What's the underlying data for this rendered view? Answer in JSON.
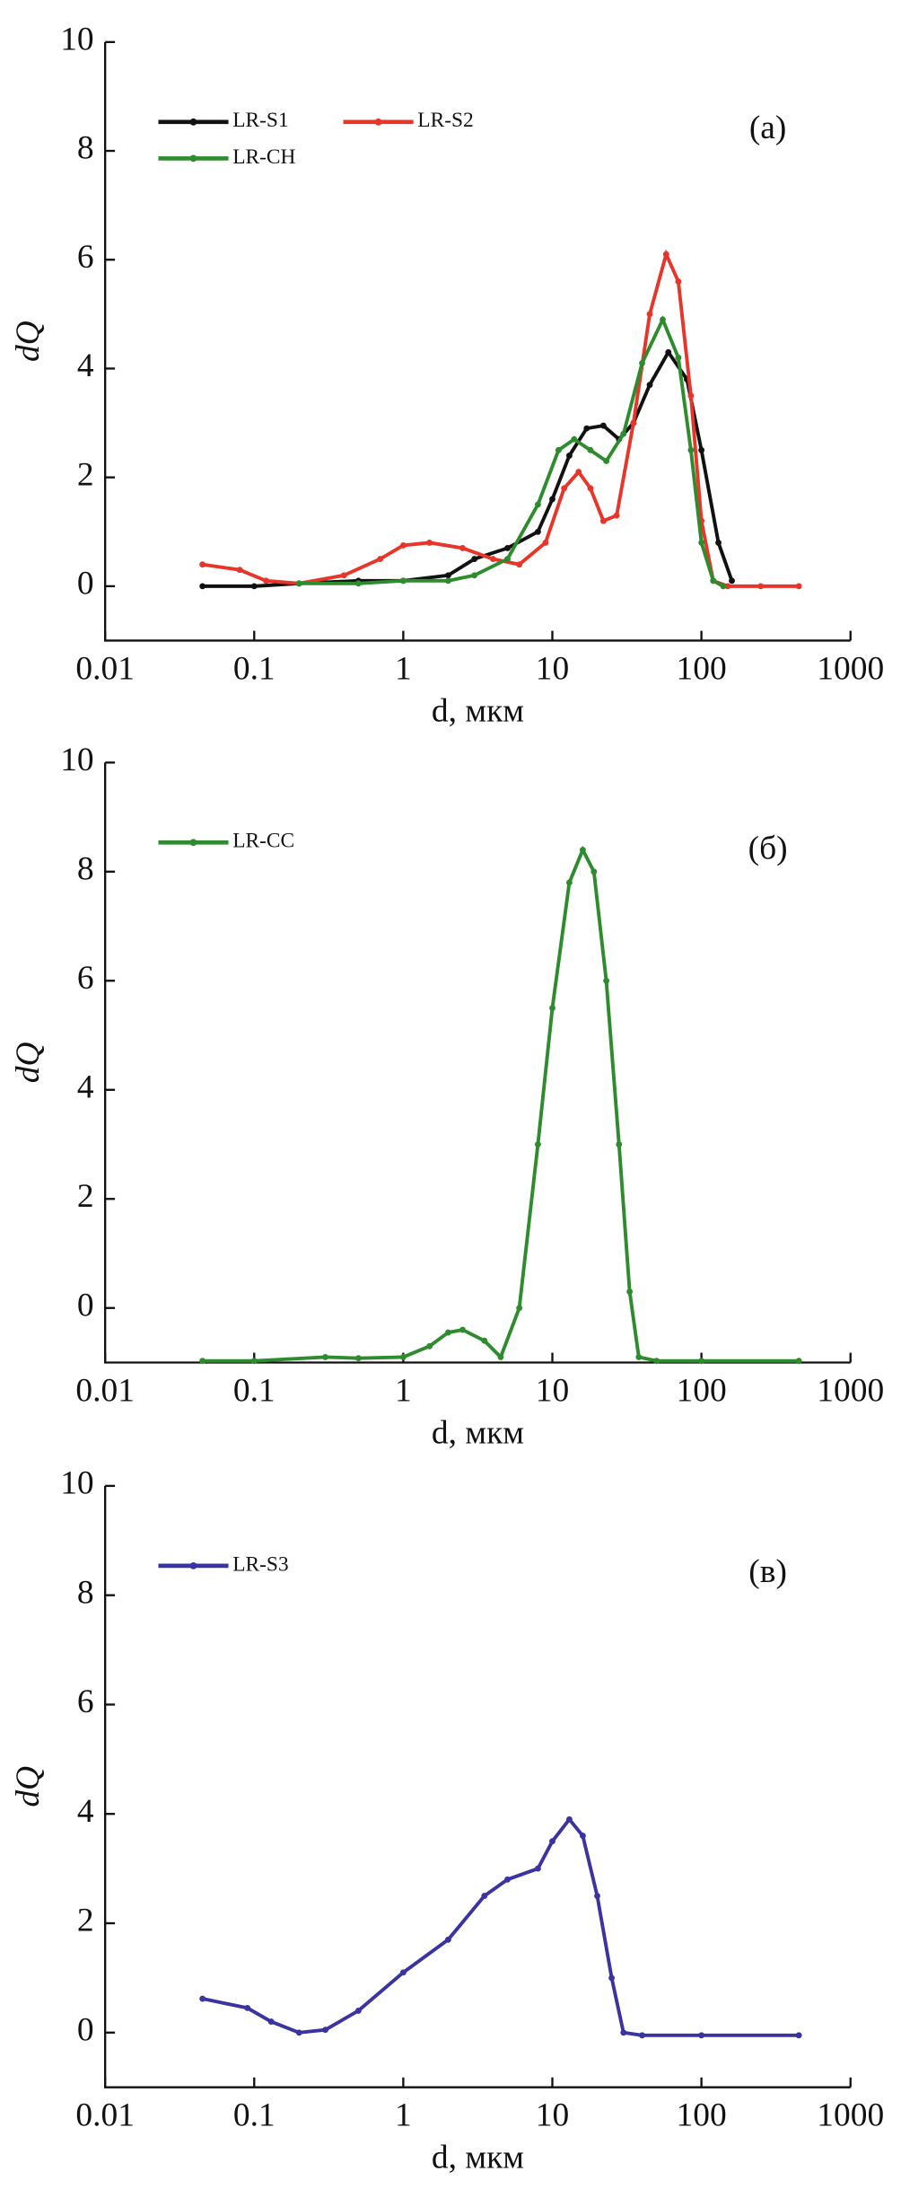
{
  "chart_data": [
    {
      "type": "line",
      "panel_label": "(a)",
      "xlabel": "d, мкм",
      "ylabel": "dQ",
      "xscale": "log",
      "xlim": [
        0.01,
        1000
      ],
      "xticks": [
        0.01,
        0.1,
        1,
        10,
        100,
        1000
      ],
      "ylim": [
        -1,
        10
      ],
      "yticks": [
        0,
        2,
        4,
        6,
        8,
        10
      ],
      "legend": "upper left",
      "series": [
        {
          "name": "LR-S1",
          "color": "#111111",
          "x": [
            0.045,
            0.1,
            0.2,
            0.5,
            1,
            2,
            3,
            5,
            8,
            10,
            13,
            17,
            22,
            28,
            35,
            45,
            60,
            80,
            100,
            130,
            160
          ],
          "values": [
            0,
            0,
            0.05,
            0.1,
            0.1,
            0.2,
            0.5,
            0.7,
            1.0,
            1.6,
            2.4,
            2.9,
            2.95,
            2.7,
            3.0,
            3.7,
            4.3,
            3.8,
            2.5,
            0.8,
            0.1
          ]
        },
        {
          "name": "LR-S2",
          "color": "#e8352a",
          "x": [
            0.045,
            0.08,
            0.12,
            0.2,
            0.4,
            0.7,
            1,
            1.5,
            2.5,
            4,
            6,
            9,
            12,
            15,
            18,
            22,
            27,
            35,
            45,
            58,
            70,
            85,
            100,
            120,
            150,
            250,
            450
          ],
          "values": [
            0.4,
            0.3,
            0.1,
            0.05,
            0.2,
            0.5,
            0.75,
            0.8,
            0.7,
            0.5,
            0.4,
            0.8,
            1.8,
            2.1,
            1.8,
            1.2,
            1.3,
            3.0,
            5.0,
            6.1,
            5.6,
            3.5,
            1.2,
            0.1,
            0,
            0,
            0
          ]
        },
        {
          "name": "LR-CH",
          "color": "#2e8b2e",
          "x": [
            0.2,
            0.5,
            1,
            2,
            3,
            5,
            8,
            11,
            14,
            18,
            23,
            30,
            40,
            55,
            70,
            85,
            100,
            120,
            140
          ],
          "values": [
            0.05,
            0.05,
            0.1,
            0.1,
            0.2,
            0.5,
            1.5,
            2.5,
            2.7,
            2.5,
            2.3,
            2.8,
            4.1,
            4.9,
            4.2,
            2.5,
            0.8,
            0.1,
            0
          ]
        }
      ]
    },
    {
      "type": "line",
      "panel_label": "(б)",
      "xlabel": "d, мкм",
      "ylabel": "dQ",
      "xscale": "log",
      "xlim": [
        0.01,
        1000
      ],
      "xticks": [
        0.01,
        0.1,
        1,
        10,
        100,
        1000
      ],
      "ylim": [
        -1,
        10
      ],
      "yticks": [
        0,
        2,
        4,
        6,
        8,
        10
      ],
      "legend": "upper left",
      "series": [
        {
          "name": "LR-CC",
          "color": "#2e8b2e",
          "x": [
            0.045,
            0.1,
            0.3,
            0.5,
            1,
            1.5,
            2,
            2.5,
            3.5,
            4.5,
            6,
            8,
            10,
            13,
            16,
            19,
            23,
            28,
            33,
            38,
            50,
            100,
            450
          ],
          "values": [
            -0.97,
            -0.97,
            -0.9,
            -0.92,
            -0.9,
            -0.7,
            -0.45,
            -0.4,
            -0.6,
            -0.9,
            0.0,
            3.0,
            5.5,
            7.8,
            8.4,
            8.0,
            6.0,
            3.0,
            0.3,
            -0.9,
            -0.97,
            -0.97,
            -0.97
          ]
        }
      ]
    },
    {
      "type": "line",
      "panel_label": "(в)",
      "xlabel": "d, мкм",
      "ylabel": "dQ",
      "xscale": "log",
      "xlim": [
        0.01,
        1000
      ],
      "xticks": [
        0.01,
        0.1,
        1,
        10,
        100,
        1000
      ],
      "ylim": [
        -1,
        10
      ],
      "yticks": [
        0,
        2,
        4,
        6,
        8,
        10
      ],
      "legend": "upper left",
      "series": [
        {
          "name": "LR-S3",
          "color": "#3a33a0",
          "x": [
            0.045,
            0.09,
            0.13,
            0.2,
            0.3,
            0.5,
            1,
            2,
            3.5,
            5,
            8,
            10,
            13,
            16,
            20,
            25,
            30,
            40,
            100,
            450
          ],
          "values": [
            0.62,
            0.45,
            0.2,
            0.0,
            0.05,
            0.4,
            1.1,
            1.7,
            2.5,
            2.8,
            3.0,
            3.5,
            3.9,
            3.6,
            2.5,
            1.0,
            0,
            -0.05,
            -0.05,
            -0.05
          ]
        }
      ]
    }
  ]
}
